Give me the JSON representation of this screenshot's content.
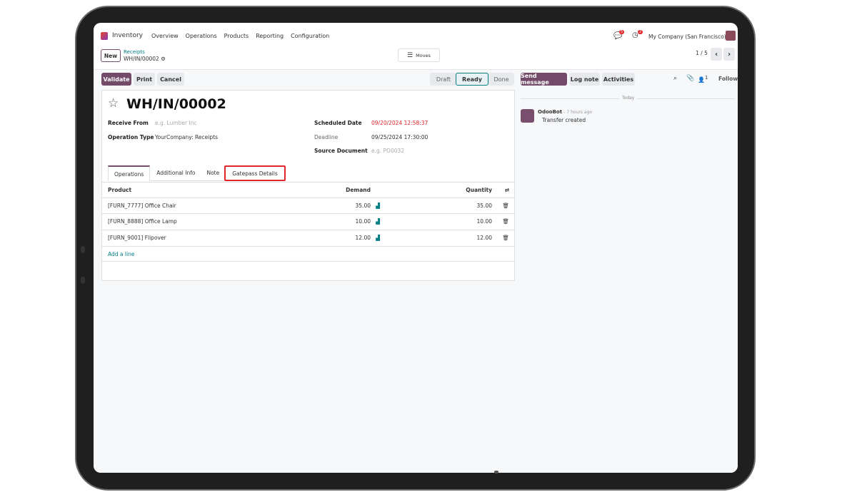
{
  "navbar": {
    "app": "Inventory",
    "menu": [
      "Overview",
      "Operations",
      "Products",
      "Reporting",
      "Configuration"
    ],
    "messages_badge": "5",
    "activities_badge": "2",
    "company": "My Company (San Francisco)"
  },
  "control": {
    "new": "New",
    "breadcrumb_parent": "Receipts",
    "breadcrumb_current": "WH/IN/00002",
    "moves": "Moves",
    "pager": "1 / 5"
  },
  "actions": {
    "validate": "Validate",
    "print": "Print",
    "cancel": "Cancel"
  },
  "statusbar": {
    "steps": [
      "Draft",
      "Ready",
      "Done"
    ],
    "active": "Ready"
  },
  "form": {
    "title": "WH/IN/00002",
    "receive_from_label": "Receive From",
    "receive_from_placeholder": "e.g. Lumber Inc",
    "operation_type_label": "Operation Type",
    "operation_type": "YourCompany: Receipts",
    "scheduled_date_label": "Scheduled Date",
    "scheduled_date": "09/20/2024 12:58:37",
    "deadline_label": "Deadline",
    "deadline": "09/25/2024 17:30:00",
    "source_document_label": "Source Document",
    "source_document_placeholder": "e.g. PO0032",
    "help_mark": "?"
  },
  "tabs": [
    "Operations",
    "Additional Info",
    "Note",
    "Gatepass Details"
  ],
  "table": {
    "headers": [
      "Product",
      "Demand",
      "Quantity"
    ],
    "rows": [
      {
        "product": "[FURN_7777] Office Chair",
        "demand": "35.00",
        "quantity": "35.00"
      },
      {
        "product": "[FURN_8888] Office Lamp",
        "demand": "10.00",
        "quantity": "10.00"
      },
      {
        "product": "[FURN_9001] Flipover",
        "demand": "12.00",
        "quantity": "12.00"
      }
    ],
    "add_line": "Add a line"
  },
  "chatter": {
    "send_message": "Send message",
    "log_note": "Log note",
    "activities": "Activities",
    "followers_count": "1",
    "follow": "Follow",
    "date_separator": "Today",
    "author": "OdooBot",
    "time": "- 7 hours ago",
    "body": "Transfer created"
  },
  "colors": {
    "primary": "#714b67",
    "link": "#017e84",
    "overdue": "#e0262a",
    "highlight": "#e0262a"
  }
}
